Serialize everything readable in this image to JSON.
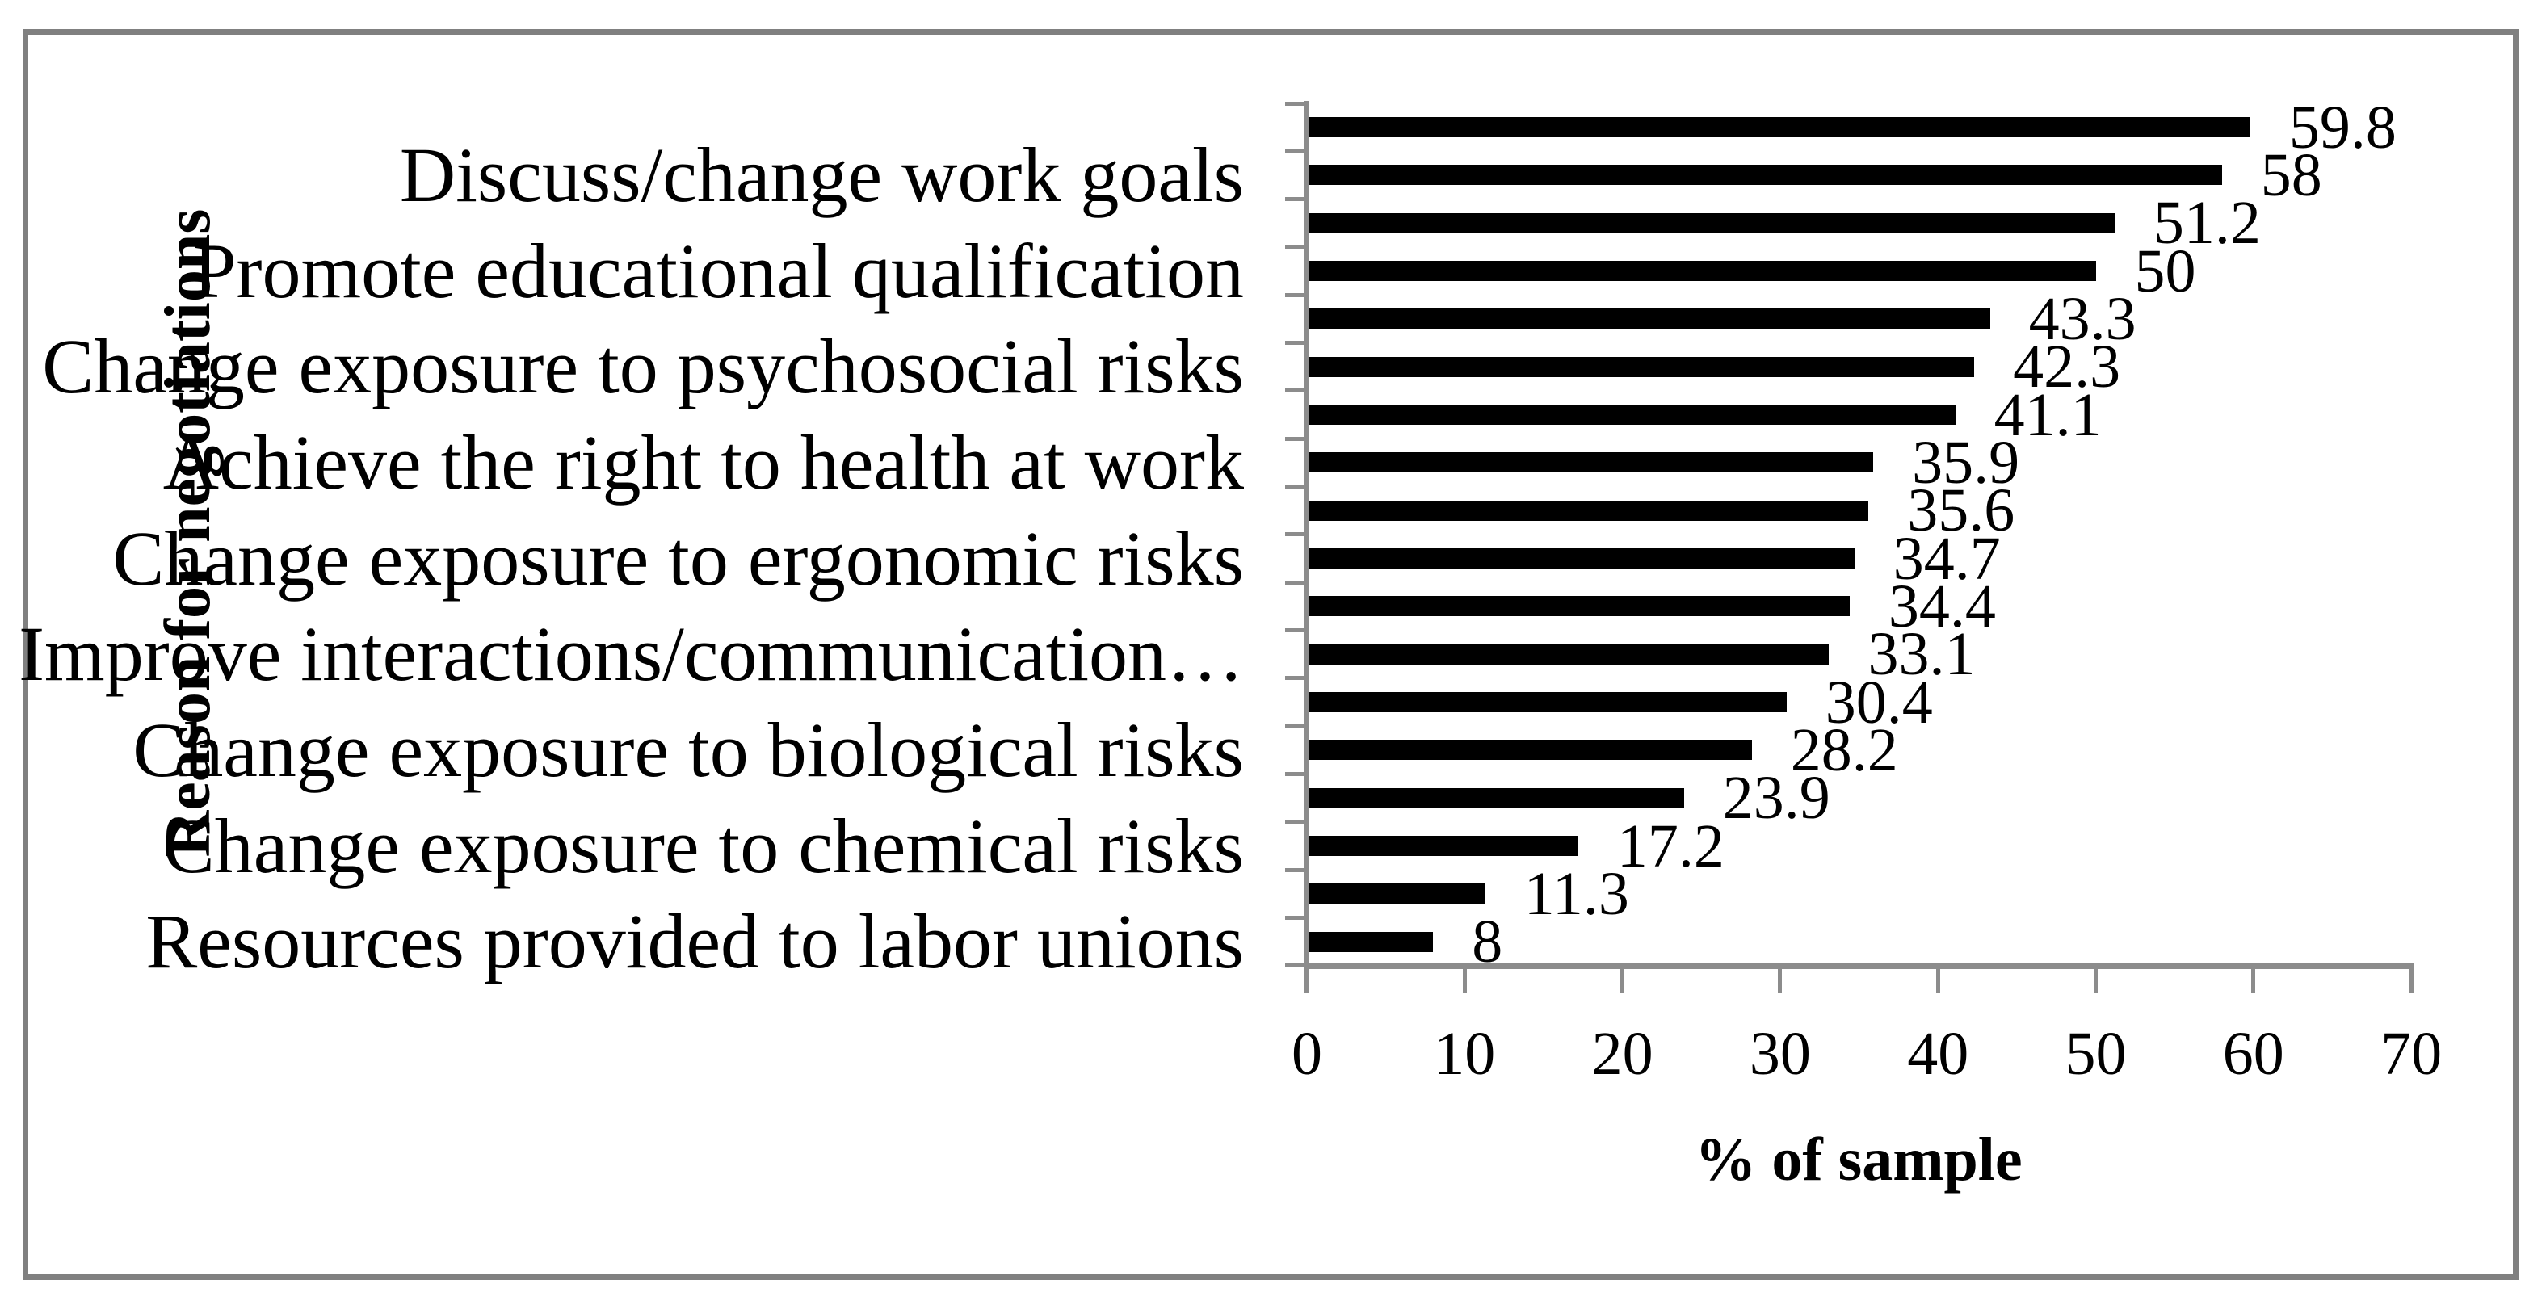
{
  "figure": {
    "background_color": "#ffffff",
    "frame_color": "#808080"
  },
  "chart_data": {
    "type": "bar",
    "orientation": "horizontal",
    "title": "",
    "xlabel": "% of sample",
    "ylabel": "Reason for negotiations",
    "xlim": [
      0,
      70
    ],
    "xticks": [
      0,
      10,
      20,
      30,
      40,
      50,
      60,
      70
    ],
    "grid": false,
    "legend": false,
    "data_labels_shown": true,
    "bar_color": "#000000",
    "axis_color": "#8c8c8c",
    "categories": [
      "",
      "Discuss/change work goals",
      "",
      "Promote educational qualification",
      "",
      "Change exposure to psychosocial risks",
      "",
      "Achieve the right to health at work",
      "",
      "Change exposure to ergonomic risks",
      "",
      "Improve interactions/communication…",
      "",
      "Change exposure to biological risks",
      "",
      "Change exposure to chemical risks",
      "",
      "Resources provided to labor unions"
    ],
    "values": [
      59.8,
      58,
      51.2,
      50,
      43.3,
      42.3,
      41.1,
      35.9,
      35.6,
      34.7,
      34.4,
      33.1,
      30.4,
      28.2,
      23.9,
      17.2,
      11.3,
      8
    ],
    "value_labels": [
      "59.8",
      "58",
      "51.2",
      "50",
      "43.3",
      "42.3",
      "41.1",
      "35.9",
      "35.6",
      "34.7",
      "34.4",
      "33.1",
      "30.4",
      "28.2",
      "23.9",
      "17.2",
      "11.3",
      "8"
    ]
  }
}
